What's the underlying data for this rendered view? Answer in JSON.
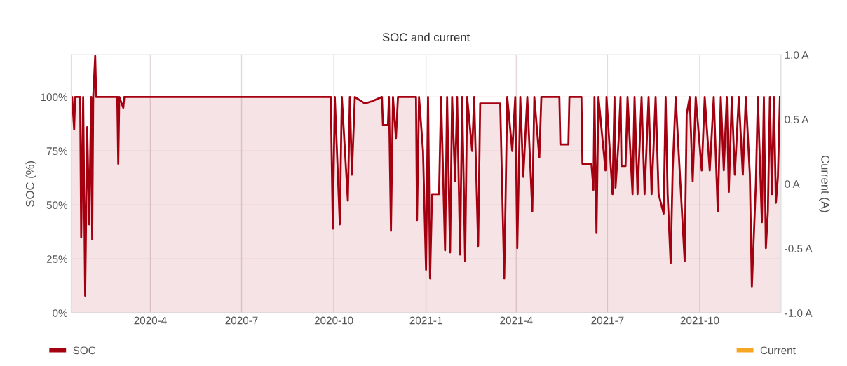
{
  "chart_data": {
    "type": "area",
    "title": "SOC and current",
    "ylabel": "SOC (%)",
    "y2label": "Current (A)",
    "x": [
      "2020-01-13",
      "2020-01-14",
      "2020-01-16",
      "2020-01-17",
      "2020-01-22",
      "2020-01-23",
      "2020-01-25",
      "2020-01-26",
      "2020-01-27",
      "2020-01-29",
      "2020-01-31",
      "2020-02-02",
      "2020-02-03",
      "2020-02-04",
      "2020-02-06",
      "2020-02-07",
      "2020-02-28",
      "2020-02-29",
      "2020-03-01",
      "2020-03-05",
      "2020-03-06",
      "2020-09-28",
      "2020-09-30",
      "2020-10-02",
      "2020-10-07",
      "2020-10-09",
      "2020-10-15",
      "2020-10-17",
      "2020-10-19",
      "2020-10-22",
      "2020-11-01",
      "2020-11-08",
      "2020-11-18",
      "2020-11-19",
      "2020-11-24",
      "2020-11-25",
      "2020-11-27",
      "2020-11-29",
      "2020-12-02",
      "2020-12-04",
      "2020-12-22",
      "2020-12-23",
      "2020-12-25",
      "2020-12-29",
      "2021-01-01",
      "2021-01-03",
      "2021-01-05",
      "2021-01-07",
      "2021-01-14",
      "2021-01-16",
      "2021-01-20",
      "2021-01-22",
      "2021-01-25",
      "2021-01-27",
      "2021-01-30",
      "2021-02-01",
      "2021-02-04",
      "2021-02-06",
      "2021-02-09",
      "2021-02-11",
      "2021-02-16",
      "2021-02-18",
      "2021-02-22",
      "2021-02-24",
      "2021-03-16",
      "2021-03-20",
      "2021-03-23",
      "2021-03-28",
      "2021-03-31",
      "2021-04-02",
      "2021-04-05",
      "2021-04-08",
      "2021-04-12",
      "2021-04-17",
      "2021-04-19",
      "2021-04-24",
      "2021-04-26",
      "2021-05-14",
      "2021-05-15",
      "2021-05-23",
      "2021-05-24",
      "2021-06-05",
      "2021-06-06",
      "2021-06-15",
      "2021-06-17",
      "2021-06-18",
      "2021-06-20",
      "2021-06-22",
      "2021-06-29",
      "2021-06-30",
      "2021-07-06",
      "2021-07-08",
      "2021-07-09",
      "2021-07-12",
      "2021-07-14",
      "2021-07-15",
      "2021-07-19",
      "2021-07-21",
      "2021-07-26",
      "2021-07-28",
      "2021-07-31",
      "2021-08-04",
      "2021-08-07",
      "2021-08-11",
      "2021-08-14",
      "2021-08-18",
      "2021-08-21",
      "2021-08-26",
      "2021-08-28",
      "2021-08-30",
      "2021-09-02",
      "2021-09-04",
      "2021-09-07",
      "2021-09-11",
      "2021-09-16",
      "2021-09-18",
      "2021-09-21",
      "2021-09-24",
      "2021-09-27",
      "2021-10-03",
      "2021-10-06",
      "2021-10-11",
      "2021-10-15",
      "2021-10-19",
      "2021-10-22",
      "2021-10-25",
      "2021-10-28",
      "2021-10-30",
      "2021-11-02",
      "2021-11-05",
      "2021-11-09",
      "2021-11-13",
      "2021-11-16",
      "2021-11-20",
      "2021-11-22",
      "2021-11-26",
      "2021-11-28",
      "2021-12-02",
      "2021-12-04",
      "2021-12-06",
      "2021-12-08",
      "2021-12-10",
      "2021-12-12",
      "2021-12-14",
      "2021-12-16",
      "2021-12-18",
      "2021-12-20"
    ],
    "series": [
      {
        "name": "SOC",
        "color": "#a50010",
        "values": [
          100,
          100,
          85,
          100,
          100,
          35,
          100,
          55,
          8,
          86,
          41,
          100,
          34,
          100,
          119,
          100,
          100,
          69,
          100,
          95,
          100,
          100,
          39,
          100,
          41,
          100,
          52,
          100,
          64,
          100,
          97,
          98,
          100,
          87,
          87,
          100,
          38,
          100,
          81,
          100,
          100,
          43,
          100,
          75,
          20,
          100,
          16,
          55,
          55,
          100,
          29,
          100,
          28,
          100,
          61,
          100,
          27,
          100,
          24,
          100,
          75,
          100,
          31,
          97,
          97,
          16,
          100,
          75,
          100,
          30,
          100,
          63,
          100,
          47,
          100,
          72,
          100,
          100,
          78,
          78,
          100,
          100,
          69,
          69,
          57,
          100,
          37,
          100,
          66,
          100,
          55,
          100,
          58,
          79,
          100,
          68,
          68,
          100,
          55,
          100,
          55,
          100,
          55,
          100,
          55,
          100,
          55,
          46,
          100,
          55,
          23,
          66,
          100,
          66,
          24,
          92,
          100,
          61,
          100,
          66,
          100,
          66,
          100,
          47,
          100,
          66,
          100,
          56,
          100,
          64,
          100,
          64,
          100,
          64,
          12,
          60,
          100,
          42,
          100,
          30,
          47,
          100,
          55,
          100,
          51,
          63,
          100
        ]
      },
      {
        "name": "Current",
        "color": "#f5a623",
        "values": [
          null,
          null,
          null,
          null,
          null,
          null,
          null,
          null,
          null,
          null,
          null,
          null,
          null,
          null,
          null,
          null,
          null,
          null,
          null,
          null,
          null,
          null,
          null,
          null,
          null,
          null,
          null,
          null,
          null,
          null,
          null,
          null,
          null,
          null,
          null,
          null,
          null,
          null,
          null,
          null,
          null,
          null,
          null,
          null,
          null,
          null,
          null,
          null,
          null,
          null,
          null,
          null,
          null,
          null,
          null,
          null,
          null,
          null,
          null,
          null,
          null,
          null,
          null,
          null,
          null,
          null,
          null,
          null,
          null,
          null,
          null,
          null,
          null,
          null,
          null,
          null,
          null,
          null,
          null,
          null,
          null,
          null,
          null,
          null,
          null,
          null,
          null,
          null,
          null,
          null,
          null,
          null,
          null,
          null,
          null,
          null,
          null,
          null,
          null,
          null,
          null,
          null,
          null,
          null,
          null,
          null,
          null,
          null,
          null,
          null,
          null,
          null,
          null,
          null,
          null,
          null,
          null,
          null,
          null,
          null,
          null,
          null,
          null,
          null,
          null,
          null,
          null,
          null,
          null,
          null,
          null,
          null,
          null,
          null,
          null,
          null,
          null,
          null,
          null,
          null,
          null,
          null,
          null,
          null,
          null,
          null,
          null
        ]
      }
    ],
    "xlim": [
      "2020-01-13",
      "2021-12-21"
    ],
    "xticks": [
      {
        "value": "2020-04",
        "label": "2020-4"
      },
      {
        "value": "2020-07",
        "label": "2020-7"
      },
      {
        "value": "2020-10",
        "label": "2020-10"
      },
      {
        "value": "2021-01",
        "label": "2021-1"
      },
      {
        "value": "2021-04",
        "label": "2021-4"
      },
      {
        "value": "2021-07",
        "label": "2021-7"
      },
      {
        "value": "2021-10",
        "label": "2021-10"
      }
    ],
    "ylim": [
      0,
      119.5
    ],
    "yticks": [
      {
        "value": 0,
        "label": "0%"
      },
      {
        "value": 25,
        "label": "25%"
      },
      {
        "value": 50,
        "label": "50%"
      },
      {
        "value": 75,
        "label": "75%"
      },
      {
        "value": 100,
        "label": "100%"
      }
    ],
    "y2lim": [
      -1.0,
      1.0
    ],
    "y2ticks": [
      {
        "value": -1.0,
        "label": "-1.0 A"
      },
      {
        "value": -0.5,
        "label": "-0.5 A"
      },
      {
        "value": 0,
        "label": "0 A"
      },
      {
        "value": 0.5,
        "label": "0.5 A"
      },
      {
        "value": 1.0,
        "label": "1.0 A"
      }
    ],
    "grid": true,
    "legend": "bottom"
  }
}
